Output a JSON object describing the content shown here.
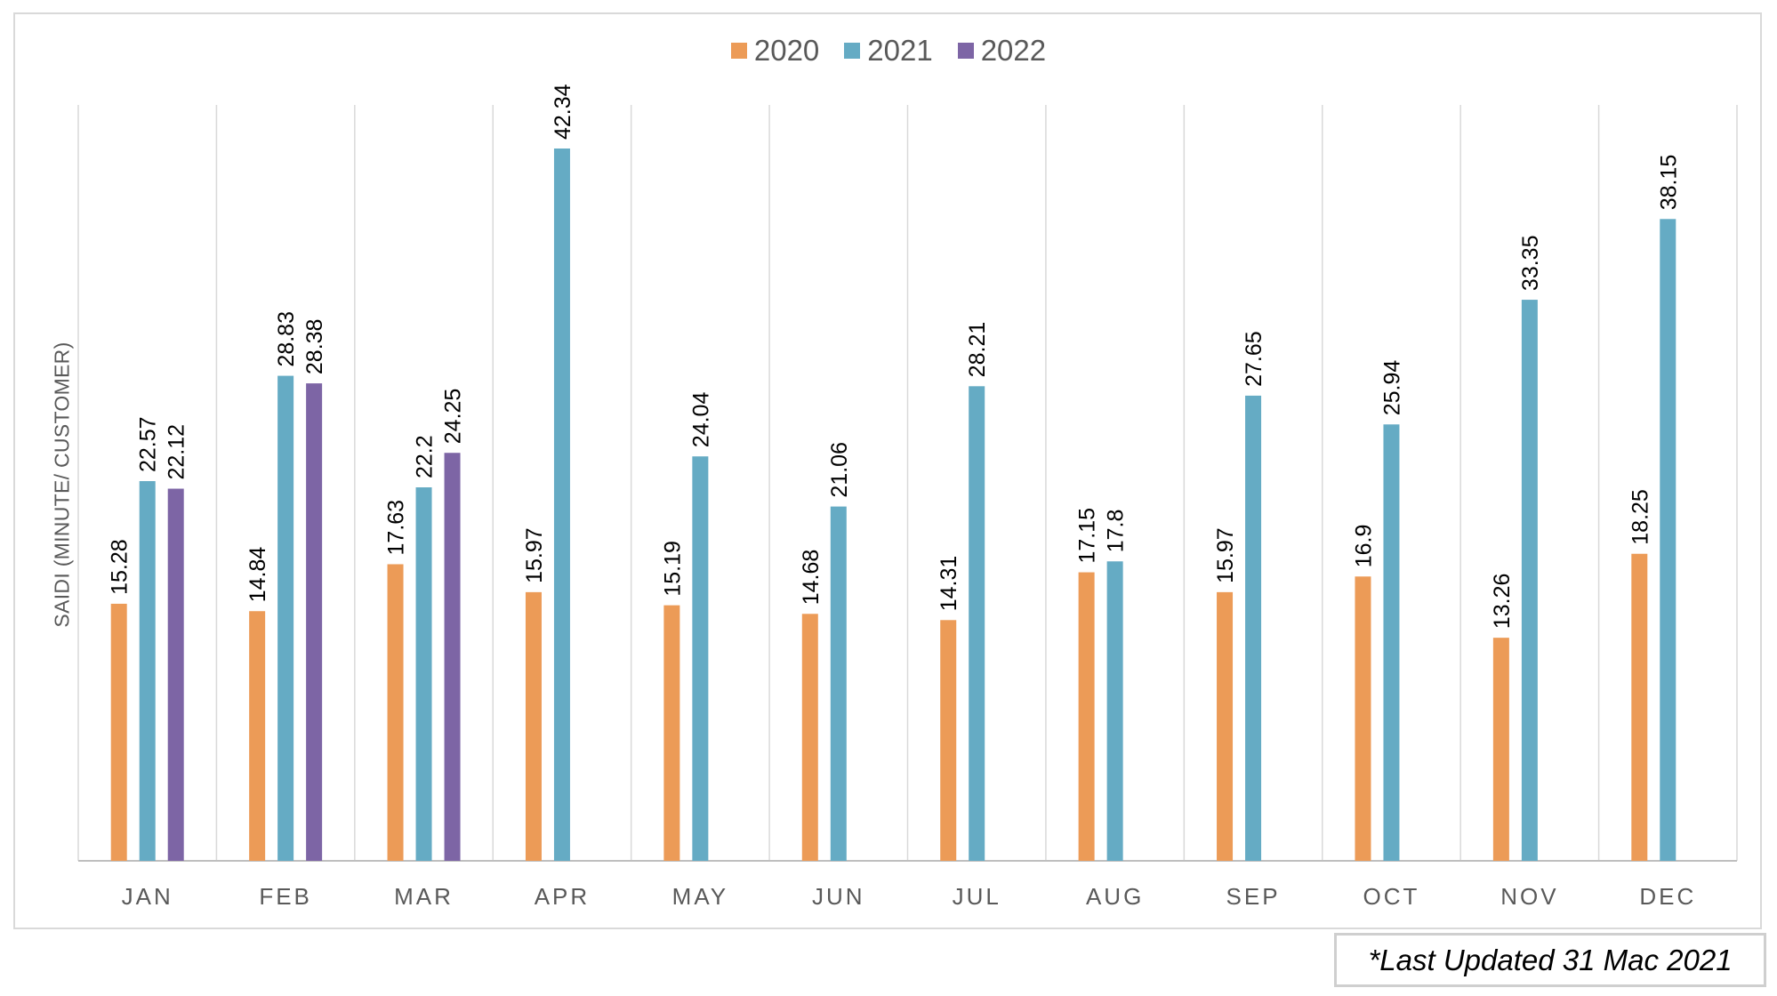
{
  "chart_data": {
    "type": "bar",
    "title": "",
    "xlabel": "",
    "ylabel": "SAIDI (MINUTE/ CUSTOMER)",
    "ylim": [
      0,
      45
    ],
    "grid": "vertical category separators",
    "legend_position": "top-center",
    "categories": [
      "JAN",
      "FEB",
      "MAR",
      "APR",
      "MAY",
      "JUN",
      "JUL",
      "AUG",
      "SEP",
      "OCT",
      "NOV",
      "DEC"
    ],
    "series": [
      {
        "name": "2020",
        "color": "#ec9b57",
        "values": [
          15.28,
          14.84,
          17.63,
          15.97,
          15.19,
          14.68,
          14.31,
          17.15,
          15.97,
          16.9,
          13.26,
          18.25
        ]
      },
      {
        "name": "2021",
        "color": "#65abc4",
        "values": [
          22.57,
          28.83,
          22.2,
          42.34,
          24.04,
          21.06,
          28.21,
          17.8,
          27.65,
          25.94,
          33.35,
          38.15
        ]
      },
      {
        "name": "2022",
        "color": "#7d65a5",
        "values": [
          22.12,
          28.38,
          24.25,
          null,
          null,
          null,
          null,
          null,
          null,
          null,
          null,
          null
        ]
      }
    ]
  },
  "note": "*Last Updated  31 Mac 2021"
}
